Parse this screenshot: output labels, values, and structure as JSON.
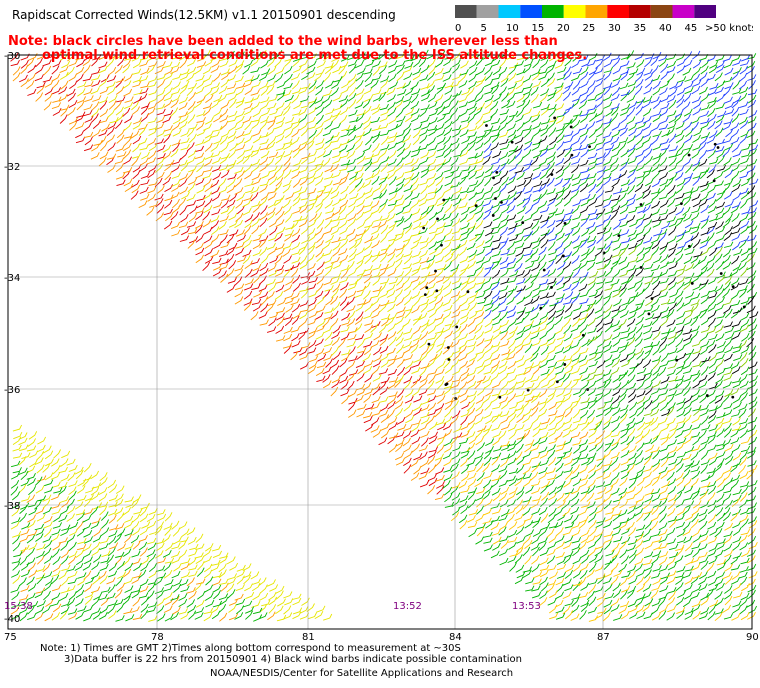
{
  "header": {
    "title": "Rapidscat Corrected Winds(12.5KM) v1.1 20150901 descending",
    "note_line1": "Note: black circles have been added to the wind barbs, wherever less than",
    "note_line2": "optimal wind retrieval conditions are met due to the ISS altitude changes."
  },
  "legend": {
    "units": ">50 knots",
    "ticks": [
      "0",
      "5",
      "10",
      "15",
      "20",
      "25",
      "30",
      "35",
      "40",
      "45"
    ],
    "colors": [
      "#505050",
      "#a0a0a0",
      "#00c8ff",
      "#0050ff",
      "#00b400",
      "#ffff00",
      "#ffa500",
      "#ff0000",
      "#b40000",
      "#8b4513",
      "#c800c8",
      "#500080"
    ]
  },
  "map": {
    "lat_labels": [
      "-30",
      "-32",
      "-34",
      "-36",
      "-38",
      "-40"
    ],
    "lon_labels": [
      "75",
      "78",
      "81",
      "84",
      "87",
      "90"
    ],
    "time_labels": [
      "15:38",
      "13:52",
      "13:53"
    ],
    "time_color": "#800080",
    "swath_color_zones": [
      "green",
      "yellow",
      "orange",
      "red",
      "blue",
      "black"
    ]
  },
  "footer": {
    "line1": "Note: 1) Times are GMT 2)Times along bottom correspond to measurement at ~30S",
    "line2": "3)Data buffer is 22 hrs from 20150901 4) Black wind barbs indicate possible contamination",
    "line3": "NOAA/NESDIS/Center for Satellite Applications and Research"
  }
}
